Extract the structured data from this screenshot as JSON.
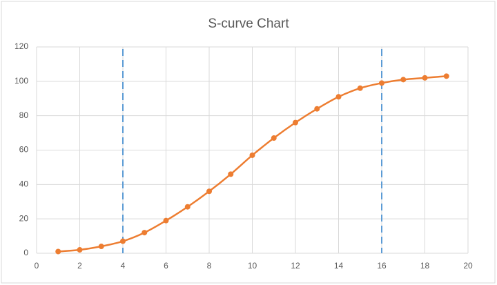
{
  "chart_data": {
    "type": "line",
    "title": "S-curve Chart",
    "x": [
      1,
      2,
      3,
      4,
      5,
      6,
      7,
      8,
      9,
      10,
      11,
      12,
      13,
      14,
      15,
      16,
      17,
      18,
      19
    ],
    "series": [
      {
        "color": "#ed7d31",
        "values": [
          1,
          2,
          4,
          7,
          12,
          19,
          27,
          36,
          46,
          57,
          67,
          76,
          84,
          91,
          96,
          99,
          101,
          102,
          103
        ]
      }
    ],
    "smooth": true,
    "markers": true,
    "vlines": [
      4,
      16
    ],
    "vline_color": "#5b9bd5",
    "xlim": [
      0,
      20
    ],
    "xticks": [
      0,
      2,
      4,
      6,
      8,
      10,
      12,
      14,
      16,
      18,
      20
    ],
    "ylim": [
      0,
      120
    ],
    "yticks": [
      0,
      20,
      40,
      60,
      80,
      100,
      120
    ],
    "grid": true
  }
}
